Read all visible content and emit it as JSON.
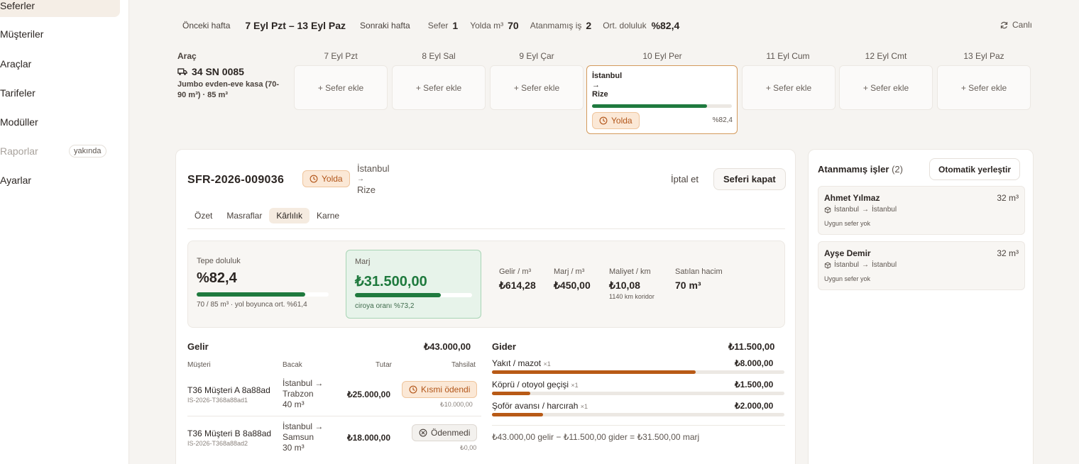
{
  "sidebar": {
    "items": [
      {
        "label": "Seferler"
      },
      {
        "label": "Müşteriler"
      },
      {
        "label": "Araçlar"
      },
      {
        "label": "Tarifeler"
      },
      {
        "label": "Modüller"
      },
      {
        "label": "Raporlar",
        "badge": "yakında"
      },
      {
        "label": "Ayarlar"
      }
    ]
  },
  "topbar": {
    "prev_week": "Önceki hafta",
    "range": "7 Eyl Pzt – 13 Eyl Paz",
    "next_week": "Sonraki hafta",
    "stats": [
      {
        "label": "Sefer",
        "value": "1"
      },
      {
        "label": "Yolda m³",
        "value": "70"
      },
      {
        "label": "Atanmamış iş",
        "value": "2"
      },
      {
        "label": "Ort. doluluk",
        "value": "%82,4"
      }
    ],
    "live_label": "Canlı",
    "live_icon": "refresh-icon"
  },
  "grid": {
    "vehicle_header": "Araç",
    "vehicle_plate": "34 SN 0085",
    "vehicle_icon": "truck-icon",
    "vehicle_desc": "Jumbo evden-eve kasa (70-90 m³) · 85 m³",
    "days": [
      "7 Eyl Pzt",
      "8 Eyl Sal",
      "9 Eyl Çar",
      "10 Eyl Per",
      "11 Eyl Cum",
      "12 Eyl Cmt",
      "13 Eyl Paz"
    ],
    "add_label": "+ Sefer ekle",
    "trip": {
      "from": "İstanbul",
      "arrow": "→",
      "to": "Rize",
      "fill": 0.824,
      "status": "Yolda",
      "fill_label": "%82,4"
    }
  },
  "trip_card": {
    "id": "SFR-2026-009036",
    "status": "Yolda",
    "route_from": "İstanbul",
    "route_arrow": "→",
    "route_to": "Rize",
    "cancel_label": "İptal et",
    "close_label": "Seferi kapat",
    "tabs": [
      "Özet",
      "Masraflar",
      "Kârlılık",
      "Karne"
    ],
    "active_tab": 2,
    "kpis": {
      "fill_label": "Tepe doluluk",
      "fill_value": "%82,4",
      "fill_ratio": 0.824,
      "fill_sub": "70 / 85 m³ · yol boyunca ort. %61,4",
      "margin_label": "Marj",
      "margin_value": "₺31.500,00",
      "margin_ratio": 0.732,
      "margin_sub": "ciroya oranı %73,2",
      "stats": [
        {
          "label": "Gelir / m³",
          "value": "₺614,28",
          "sub": ""
        },
        {
          "label": "Marj / m³",
          "value": "₺450,00",
          "sub": ""
        },
        {
          "label": "Maliyet / km",
          "value": "₺10,08",
          "sub": "1140 km koridor"
        },
        {
          "label": "Satılan hacim",
          "value": "70 m³",
          "sub": ""
        }
      ]
    },
    "income": {
      "title": "Gelir",
      "total": "₺43.000,00",
      "headers": [
        "Müşteri",
        "Bacak",
        "Tutar",
        "Tahsilat"
      ],
      "rows": [
        {
          "name": "T36 Müşteri A 8a88ad",
          "code": "IS-2026-T368a88ad1",
          "leg_from": "İstanbul →",
          "leg_to": "Trabzon",
          "leg_vol": "40 m³",
          "amount": "₺25.000,00",
          "status": "Kısmi ödendi",
          "collected": "₺10.000,00"
        },
        {
          "name": "T36 Müşteri B 8a88ad",
          "code": "IS-2026-T368a88ad2",
          "leg_from": "İstanbul →",
          "leg_to": "Samsun",
          "leg_vol": "30 m³",
          "amount": "₺18.000,00",
          "status": "Ödenmedi",
          "collected": "₺0,00"
        }
      ]
    },
    "expense": {
      "title": "Gider",
      "total": "₺11.500,00",
      "items": [
        {
          "label": "Yakıt / mazot",
          "mult": "×1",
          "amount": "₺8.000,00",
          "ratio": 0.696
        },
        {
          "label": "Köprü / otoyol geçişi",
          "mult": "×1",
          "amount": "₺1.500,00",
          "ratio": 0.13
        },
        {
          "label": "Şoför avansı / harcırah",
          "mult": "×1",
          "amount": "₺2.000,00",
          "ratio": 0.174
        }
      ],
      "formula": "₺43.000,00 gelir − ₺11.500,00 gider = ₺31.500,00 marj"
    }
  },
  "unassigned": {
    "title": "Atanmamış işler",
    "count": "(2)",
    "auto_label": "Otomatik yerleştir",
    "jobs": [
      {
        "name": "Ahmet Yılmaz",
        "volume": "32 m³",
        "from": "İstanbul",
        "arrow": "→",
        "to": "İstanbul",
        "note": "Uygun sefer yok"
      },
      {
        "name": "Ayşe Demir",
        "volume": "32 m³",
        "from": "İstanbul",
        "arrow": "→",
        "to": "İstanbul",
        "note": "Uygun sefer yok"
      }
    ]
  },
  "colors": {
    "accent_orange": "#b2561a",
    "fill_green": "#1f7a3e",
    "expense_bar": "#b85a16"
  }
}
